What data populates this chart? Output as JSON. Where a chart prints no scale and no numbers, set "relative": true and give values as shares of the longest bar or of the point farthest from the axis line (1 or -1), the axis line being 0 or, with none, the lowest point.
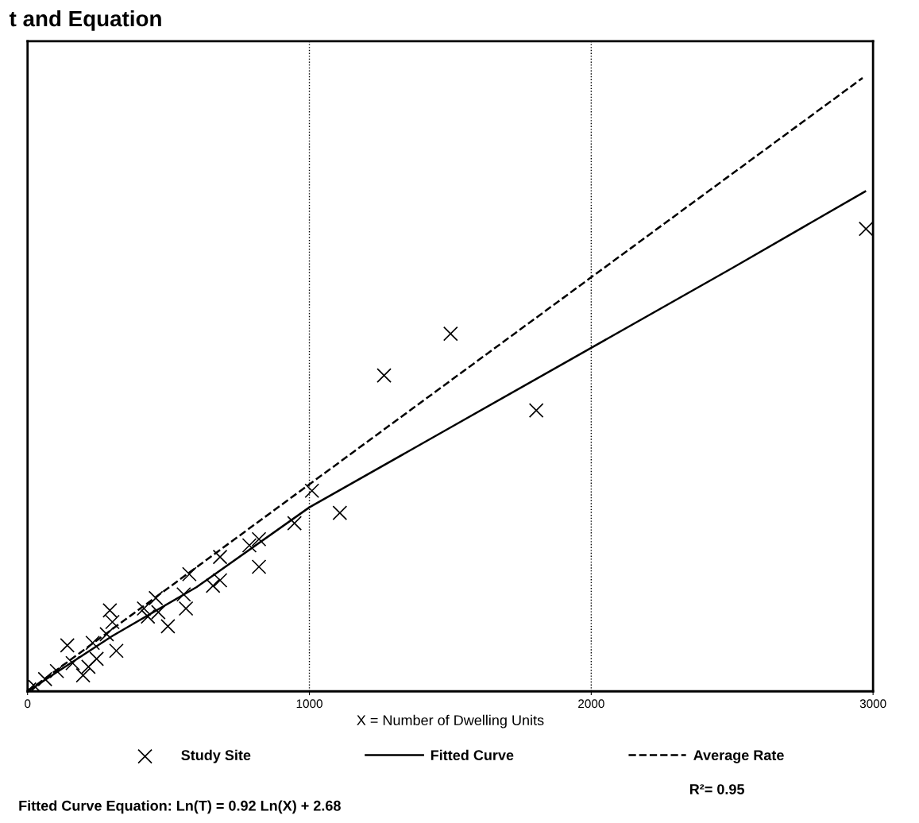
{
  "chart_data": {
    "type": "scatter",
    "title": "t and Equation",
    "xlabel": "X = Number of Dwelling Units",
    "relative": true,
    "xlim": [
      0,
      3000
    ],
    "xticks": [
      0,
      1000,
      2000,
      3000
    ],
    "grid": "x",
    "legend": "bottom",
    "annotations": [
      "R²= 0.95",
      "Fitted Curve Equation: Ln(T) = 0.92 Ln(X) + 2.68"
    ],
    "series": [
      {
        "name": "Study Site",
        "color": "#000000",
        "marker": "cross",
        "x": [
          2975,
          1501,
          1265,
          1805,
          1108,
          1009,
          947,
          821,
          821,
          787,
          683,
          683,
          658,
          574,
          562,
          554,
          455,
          498,
          427,
          464,
          413,
          292,
          301,
          281,
          231,
          141,
          197,
          245,
          160,
          104,
          62,
          28,
          6,
          315,
          216
        ],
        "values": [
          0.754,
          0.583,
          0.515,
          0.458,
          0.291,
          0.327,
          0.274,
          0.203,
          0.248,
          0.238,
          0.219,
          0.181,
          0.172,
          0.191,
          0.135,
          0.158,
          0.152,
          0.106,
          0.122,
          0.129,
          0.135,
          0.132,
          0.113,
          0.093,
          0.079,
          0.075,
          0.026,
          0.053,
          0.046,
          0.033,
          0.02,
          0.007,
          0.003,
          0.066,
          0.04
        ]
      },
      {
        "name": "Fitted Curve",
        "type": "line",
        "color": "#000000",
        "line_style": "solid",
        "x": [
          10,
          100,
          300,
          600,
          1000,
          1500,
          2000,
          2500,
          2972
        ],
        "values": [
          0.003,
          0.03,
          0.09,
          0.17,
          0.3,
          0.43,
          0.56,
          0.69,
          0.815
        ]
      },
      {
        "name": "Average Rate",
        "type": "line",
        "color": "#000000",
        "line_style": "dashed",
        "x": [
          0,
          2963
        ],
        "values": [
          0,
          1
        ]
      }
    ]
  }
}
